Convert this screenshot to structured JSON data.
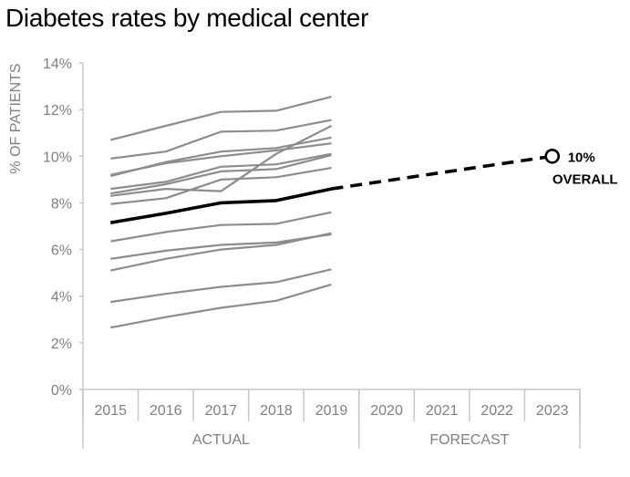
{
  "chart_data": {
    "type": "line",
    "title": "Diabetes rates by medical center",
    "ylabel": "% OF PATIENTS",
    "ylim": [
      0,
      14
    ],
    "yticks": [
      "0%",
      "2%",
      "4%",
      "6%",
      "8%",
      "10%",
      "12%",
      "14%"
    ],
    "yticks_values": [
      0,
      2,
      4,
      6,
      8,
      10,
      12,
      14
    ],
    "categories": [
      "2015",
      "2016",
      "2017",
      "2018",
      "2019",
      "2020",
      "2021",
      "2022",
      "2023"
    ],
    "groups": [
      {
        "label": "ACTUAL",
        "categories": [
          "2015",
          "2016",
          "2017",
          "2018",
          "2019"
        ]
      },
      {
        "label": "FORECAST",
        "categories": [
          "2020",
          "2021",
          "2022",
          "2023"
        ]
      }
    ],
    "grid": false,
    "centers": [
      {
        "values": [
          10.7,
          11.3,
          11.9,
          11.95,
          12.55
        ]
      },
      {
        "values": [
          9.9,
          10.2,
          11.05,
          11.1,
          11.55
        ]
      },
      {
        "values": [
          9.15,
          9.75,
          10.2,
          10.35,
          10.8
        ]
      },
      {
        "values": [
          9.2,
          9.7,
          10.0,
          10.25,
          10.55
        ]
      },
      {
        "values": [
          8.6,
          8.9,
          9.55,
          9.65,
          10.1
        ]
      },
      {
        "values": [
          8.4,
          8.8,
          9.35,
          9.45,
          10.05
        ]
      },
      {
        "values": [
          8.3,
          8.6,
          8.5,
          10.1,
          11.3
        ]
      },
      {
        "values": [
          7.95,
          8.2,
          9.0,
          9.1,
          9.5
        ]
      },
      {
        "values": [
          6.35,
          6.75,
          7.05,
          7.1,
          7.6
        ]
      },
      {
        "values": [
          5.6,
          5.95,
          6.2,
          6.3,
          6.65
        ]
      },
      {
        "values": [
          5.1,
          5.6,
          6.0,
          6.2,
          6.7
        ]
      },
      {
        "values": [
          3.75,
          4.1,
          4.4,
          4.6,
          5.15
        ]
      },
      {
        "values": [
          2.65,
          3.1,
          3.5,
          3.8,
          4.5
        ]
      }
    ],
    "overall": {
      "actual": [
        7.15,
        7.55,
        8.0,
        8.1,
        8.6
      ],
      "forecast_end": 10.0,
      "label_value": "10%",
      "label_text": "OVERALL"
    },
    "colors": {
      "centers": "#8c8c8c",
      "overall": "#000000",
      "axis": "#c8c8c8",
      "text": "#7f7f7f"
    }
  }
}
